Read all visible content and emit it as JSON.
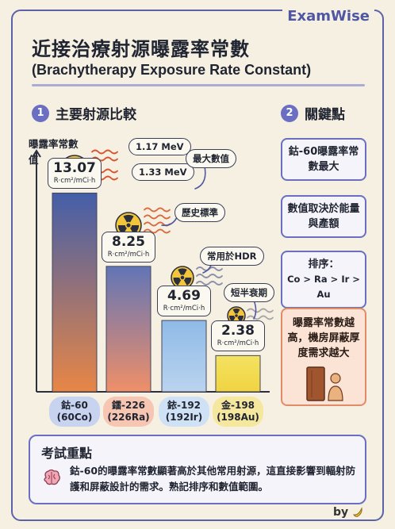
{
  "brand": "ExamWise",
  "title_zh": "近接治療射源曝露率常數",
  "title_en": "(Brachytherapy Exposure Rate Constant)",
  "section1": {
    "number": "1",
    "title": "主要射源比較"
  },
  "section2": {
    "number": "2",
    "title": "關鍵點"
  },
  "ylabel": "曝露率常數值",
  "chart_data": {
    "type": "bar",
    "ylabel": "曝露率常數值",
    "categories": [
      "鈷-60 (60Co)",
      "鐳-226 (226Ra)",
      "銥-192 (192Ir)",
      "金-198 (198Au)"
    ],
    "values": [
      13.07,
      8.25,
      4.69,
      2.38
    ],
    "unit": "R·cm²/mCi·h",
    "ylim": [
      0,
      14.5
    ],
    "grid": false
  },
  "bars": [
    {
      "value": "13.07",
      "unit": "R·cm²/mCi·h",
      "name": "鈷-60",
      "iso": "(60Co)",
      "color_top": "#3b57a6",
      "color_bottom": "#e8813e",
      "pill": "#c7d3ef"
    },
    {
      "value": "8.25",
      "unit": "R·cm²/mCi·h",
      "name": "鐳-226",
      "iso": "(226Ra)",
      "color_top": "#5a6fb5",
      "color_bottom": "#f08a62",
      "pill": "#f7c6b3"
    },
    {
      "value": "4.69",
      "unit": "R·cm²/mCi·h",
      "name": "銥-192",
      "iso": "(192Ir)",
      "color_top": "#8ab8e8",
      "color_bottom": "#b8d3f0",
      "pill": "#cfe1f4"
    },
    {
      "value": "2.38",
      "unit": "R·cm²/mCi·h",
      "name": "金-198",
      "iso": "(198Au)",
      "color_top": "#f4e25a",
      "color_bottom": "#f0d23a",
      "pill": "#f6e79e"
    }
  ],
  "energy_notes": [
    "1.17 MeV",
    "1.33 MeV"
  ],
  "annotations": {
    "max": "最大數值",
    "history": "歷史標準",
    "hdr": "常用於HDR",
    "short": "短半衰期"
  },
  "key_points": [
    "鈷-60曝露率常數最大",
    "數值取決於能量與產額",
    "排序：",
    "Co > Ra > Ir > Au",
    "曝露率常數越高，機房屏蔽厚度需求越大"
  ],
  "exam": {
    "title": "考試重點",
    "text": "鈷-60的曝露率常數顯著高於其他常用射源，這直接影響到輻射防護和屏蔽設計的需求。熟記排序和數值範圍。"
  },
  "byline": "by",
  "colors": {
    "accent": "#6a6fc2",
    "highlight": "#e28b68",
    "radiation_yellow": "#f3c53a"
  }
}
